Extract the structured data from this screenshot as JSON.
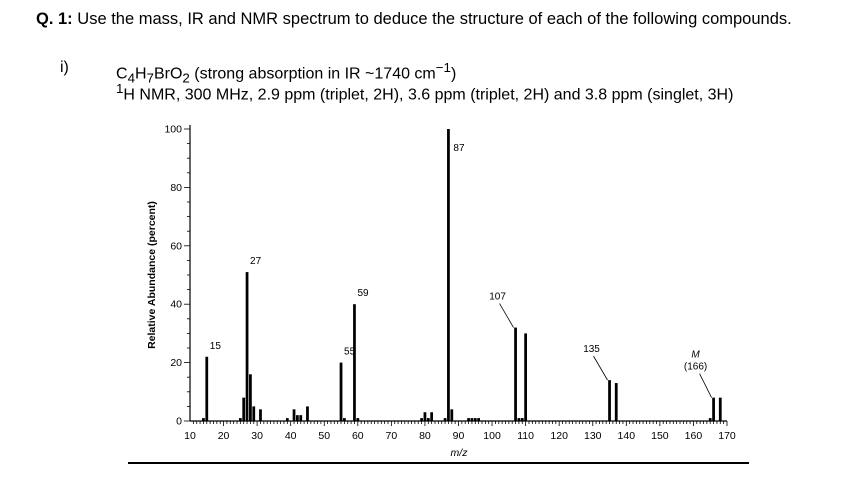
{
  "question": {
    "label": "Q. 1:",
    "text": "Use the mass, IR and NMR spectrum to deduce the structure of each of the following compounds.",
    "part_marker": "i)",
    "formula_prefix": "C",
    "formula_c": "4",
    "formula_h_sym": "H",
    "formula_h": "7",
    "formula_br_o": "BrO",
    "formula_o": "2",
    "ir_text": "(strong absorption in IR ~1740 cm",
    "ir_exp": "−1",
    "ir_close": ")",
    "nmr_sup": "1",
    "nmr_text": "H NMR, 300 MHz, 2.9 ppm (triplet, 2H), 3.6 ppm (triplet, 2H) and 3.8 ppm (singlet, 3H)"
  },
  "chart_data": {
    "type": "bar",
    "ylabel": "Relative Abundance (percent)",
    "xlabel": "m/z",
    "xlim": [
      10,
      170
    ],
    "ylim": [
      0,
      100
    ],
    "x_ticks": [
      10,
      20,
      30,
      40,
      50,
      60,
      70,
      80,
      90,
      100,
      110,
      120,
      130,
      140,
      150,
      160,
      170
    ],
    "y_ticks": [
      0,
      20,
      40,
      60,
      80,
      100
    ],
    "peaks": [
      {
        "mz": 14,
        "value": 1
      },
      {
        "mz": 15,
        "value": 22
      },
      {
        "mz": 25,
        "value": 1
      },
      {
        "mz": 26,
        "value": 8
      },
      {
        "mz": 27,
        "value": 51
      },
      {
        "mz": 28,
        "value": 16
      },
      {
        "mz": 29,
        "value": 5
      },
      {
        "mz": 31,
        "value": 4
      },
      {
        "mz": 39,
        "value": 1
      },
      {
        "mz": 41,
        "value": 4
      },
      {
        "mz": 42,
        "value": 2
      },
      {
        "mz": 43,
        "value": 2
      },
      {
        "mz": 45,
        "value": 5
      },
      {
        "mz": 55,
        "value": 20
      },
      {
        "mz": 56,
        "value": 1
      },
      {
        "mz": 59,
        "value": 40
      },
      {
        "mz": 60,
        "value": 1
      },
      {
        "mz": 79,
        "value": 1
      },
      {
        "mz": 80,
        "value": 3
      },
      {
        "mz": 81,
        "value": 1
      },
      {
        "mz": 82,
        "value": 3
      },
      {
        "mz": 86,
        "value": 1
      },
      {
        "mz": 87,
        "value": 100
      },
      {
        "mz": 88,
        "value": 4
      },
      {
        "mz": 93,
        "value": 1
      },
      {
        "mz": 94,
        "value": 1
      },
      {
        "mz": 95,
        "value": 1
      },
      {
        "mz": 96,
        "value": 1
      },
      {
        "mz": 108,
        "value": 1
      },
      {
        "mz": 109,
        "value": 1
      },
      {
        "mz": 107,
        "value": 32
      },
      {
        "mz": 110,
        "value": 30
      },
      {
        "mz": 135,
        "value": 14
      },
      {
        "mz": 137,
        "value": 13
      },
      {
        "mz": 165,
        "value": 1
      },
      {
        "mz": 166,
        "value": 8
      },
      {
        "mz": 168,
        "value": 8
      }
    ],
    "annotations": [
      {
        "mz": 15,
        "label": "15",
        "style": "horizontal",
        "value": 22
      },
      {
        "mz": 27,
        "label": "27",
        "style": "horizontal",
        "value": 51
      },
      {
        "mz": 55,
        "label": "55",
        "style": "horizontal",
        "value": 20
      },
      {
        "mz": 59,
        "label": "59",
        "style": "horizontal",
        "value": 40
      },
      {
        "mz": 87,
        "label": "87",
        "style": "inside",
        "value": 100
      },
      {
        "mz": 107,
        "label": "107",
        "style": "leader",
        "value": 32
      },
      {
        "mz": 135,
        "label": "135",
        "style": "leader",
        "value": 14
      },
      {
        "mz": 166,
        "label": "M",
        "label2": "(166)",
        "style": "leader-m",
        "value": 8
      }
    ]
  }
}
